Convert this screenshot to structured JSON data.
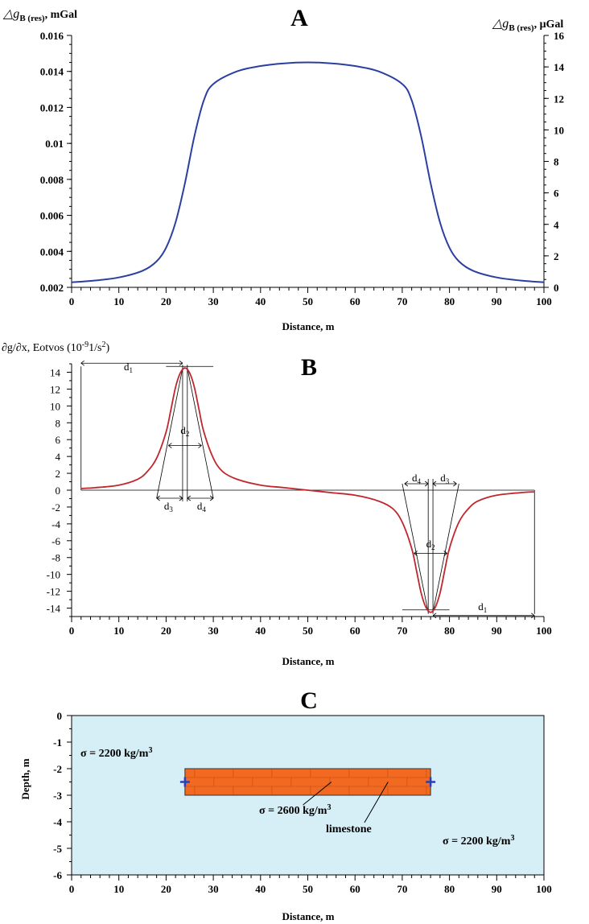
{
  "chart_data": [
    {
      "panel": "A",
      "type": "line",
      "title": "A",
      "ylabel_left_main": "△g",
      "ylabel_left_sub": "B (res)",
      "ylabel_left_unit": ", mGal",
      "ylabel_right_main": "△g",
      "ylabel_right_sub": "B (res)",
      "ylabel_right_unit": ", μGal",
      "xlabel": "Distance, m",
      "xlim": [
        0,
        100
      ],
      "ylim_left": [
        0.002,
        0.016
      ],
      "ylim_right": [
        0,
        16
      ],
      "xticks": [
        "0",
        "10",
        "20",
        "30",
        "40",
        "50",
        "60",
        "70",
        "80",
        "90",
        "100"
      ],
      "yticks_left": [
        "0.002",
        "0.004",
        "0.006",
        "0.008",
        "0.01",
        "0.012",
        "0.014",
        "0.016"
      ],
      "yticks_right": [
        "0",
        "2",
        "4",
        "6",
        "8",
        "10",
        "12",
        "14",
        "16"
      ],
      "line_color": "#2b3fa0",
      "series": [
        {
          "x": [
            0,
            5,
            10,
            15,
            18,
            20,
            22,
            24,
            26,
            28,
            30,
            35,
            40,
            45,
            50,
            55,
            60,
            65,
            70,
            72,
            74,
            76,
            78,
            80,
            82,
            85,
            90,
            95,
            100
          ],
          "values": [
            0.00228,
            0.00238,
            0.00255,
            0.00292,
            0.00345,
            0.0042,
            0.0056,
            0.0078,
            0.0104,
            0.0124,
            0.0133,
            0.014,
            0.0143,
            0.01445,
            0.0145,
            0.01445,
            0.0143,
            0.014,
            0.0133,
            0.0124,
            0.0104,
            0.0078,
            0.0056,
            0.0042,
            0.00345,
            0.00292,
            0.00255,
            0.00238,
            0.00228
          ]
        }
      ]
    },
    {
      "panel": "B",
      "type": "line",
      "title": "B",
      "ylabel": "∂g/∂x, Eotvos (10",
      "ylabel_exp": "-9",
      "ylabel_tail": "1/s",
      "ylabel_exp2": "2",
      "ylabel_close": ")",
      "xlabel": "Distance, m",
      "xlim": [
        0,
        100
      ],
      "ylim": [
        -15,
        15
      ],
      "xticks": [
        "0",
        "10",
        "20",
        "30",
        "40",
        "50",
        "60",
        "70",
        "80",
        "90",
        "100"
      ],
      "yticks": [
        "14",
        "12",
        "10",
        "8",
        "6",
        "4",
        "2",
        "0",
        "-2",
        "-4",
        "-6",
        "-8",
        "-10",
        "-12",
        "-14"
      ],
      "line_color": "#c0262b",
      "series": [
        {
          "x": [
            2,
            5,
            10,
            14,
            16,
            18,
            20,
            21,
            22,
            23,
            24,
            25,
            26,
            27,
            28,
            30,
            32,
            35,
            40,
            45,
            50,
            55,
            60,
            65,
            68,
            70,
            72,
            73,
            74,
            75,
            76,
            77,
            78,
            79,
            80,
            82,
            84,
            86,
            90,
            95,
            98
          ],
          "values": [
            0.2,
            0.3,
            0.6,
            1.3,
            2.2,
            3.8,
            6.9,
            9.5,
            12.2,
            13.9,
            14.5,
            13.9,
            12.2,
            9.5,
            6.9,
            3.8,
            2.2,
            1.3,
            0.6,
            0.3,
            0,
            -0.3,
            -0.6,
            -1.3,
            -2.2,
            -3.8,
            -6.9,
            -9.5,
            -12.2,
            -13.9,
            -14.5,
            -13.9,
            -12.2,
            -9.5,
            -6.9,
            -3.8,
            -2.2,
            -1.3,
            -0.6,
            -0.3,
            -0.2
          ]
        }
      ],
      "annotations": [
        "d1",
        "d2",
        "d3",
        "d4",
        "d4",
        "d3",
        "d2",
        "d1"
      ]
    },
    {
      "panel": "C",
      "type": "diagram",
      "title": "C",
      "ylabel": "Depth, m",
      "xlabel": "Distance, m",
      "xlim": [
        0,
        100
      ],
      "ylim": [
        -6,
        0
      ],
      "xticks": [
        "0",
        "10",
        "20",
        "30",
        "40",
        "50",
        "60",
        "70",
        "80",
        "90",
        "100"
      ],
      "yticks": [
        "0",
        "-1",
        "-2",
        "-3",
        "-4",
        "-5",
        "-6"
      ],
      "background_color": "#d6eef6",
      "body_color": "#f26a21",
      "body_x": [
        24,
        76
      ],
      "body_depth": [
        -2,
        -3
      ],
      "label_sigma_top": "σ = 2200 kg/m",
      "label_sigma_bottom": "σ = 2200 kg/m",
      "label_sigma_body": "σ = 2600 kg/m",
      "label_sup": "3",
      "label_body": "limestone"
    }
  ]
}
